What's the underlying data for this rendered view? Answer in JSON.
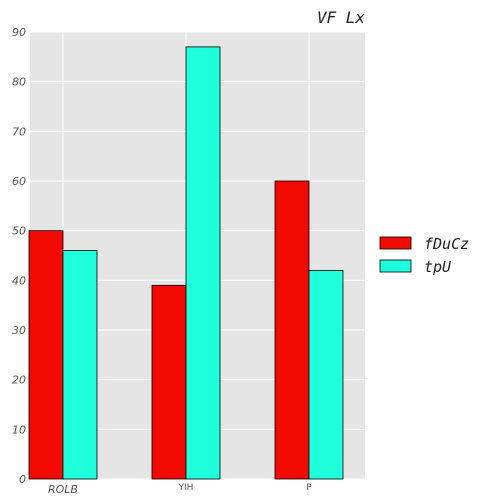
{
  "chart_data": {
    "type": "bar",
    "title": "VF Lx",
    "xlabel": "",
    "ylabel": "",
    "categories": [
      "ROLB",
      "YIH",
      "P"
    ],
    "series": [
      {
        "name": "fDuCz",
        "values": [
          50,
          39,
          60
        ],
        "color": "#f20a00"
      },
      {
        "name": "tpU",
        "values": [
          46,
          87,
          42
        ],
        "color": "#1effdc"
      }
    ],
    "ylim": [
      0,
      90
    ],
    "yticks": [
      0,
      10,
      20,
      30,
      40,
      50,
      60,
      70,
      80,
      90
    ],
    "grid": true,
    "legend": "right"
  }
}
